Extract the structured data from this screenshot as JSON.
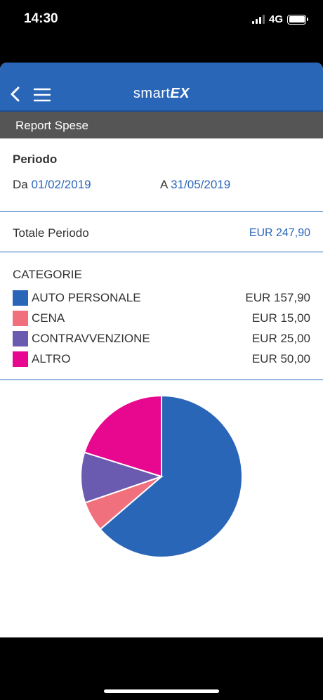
{
  "status": {
    "time": "14:30",
    "network": "4G"
  },
  "header": {
    "back_icon": "chevron-left-icon",
    "menu_icon": "hamburger-menu-icon",
    "logo_light": "smart",
    "logo_bold": "EX"
  },
  "section": {
    "title": "Report Spese"
  },
  "periodo": {
    "title": "Periodo",
    "from_label": "Da",
    "from_date": "01/02/2019",
    "to_label": "A",
    "to_date": "31/05/2019"
  },
  "totale": {
    "label": "Totale Periodo",
    "amount": "EUR 247,90"
  },
  "categorie": {
    "title": "CATEGORIE",
    "items": [
      {
        "label": "AUTO PERSONALE",
        "amount": "EUR 157,90",
        "color": "#2a66b8"
      },
      {
        "label": "CENA",
        "amount": "EUR 15,00",
        "color": "#f0707e"
      },
      {
        "label": "CONTRAVVENZIONE",
        "amount": "EUR 25,00",
        "color": "#6b5bb0"
      },
      {
        "label": "ALTRO",
        "amount": "EUR 50,00",
        "color": "#e8078f"
      }
    ]
  },
  "chart_data": {
    "type": "pie",
    "categories": [
      "AUTO PERSONALE",
      "CENA",
      "CONTRAVVENZIONE",
      "ALTRO"
    ],
    "values": [
      157.9,
      15.0,
      25.0,
      50.0
    ],
    "colors": [
      "#2a66b8",
      "#f0707e",
      "#6b5bb0",
      "#e8078f"
    ]
  }
}
